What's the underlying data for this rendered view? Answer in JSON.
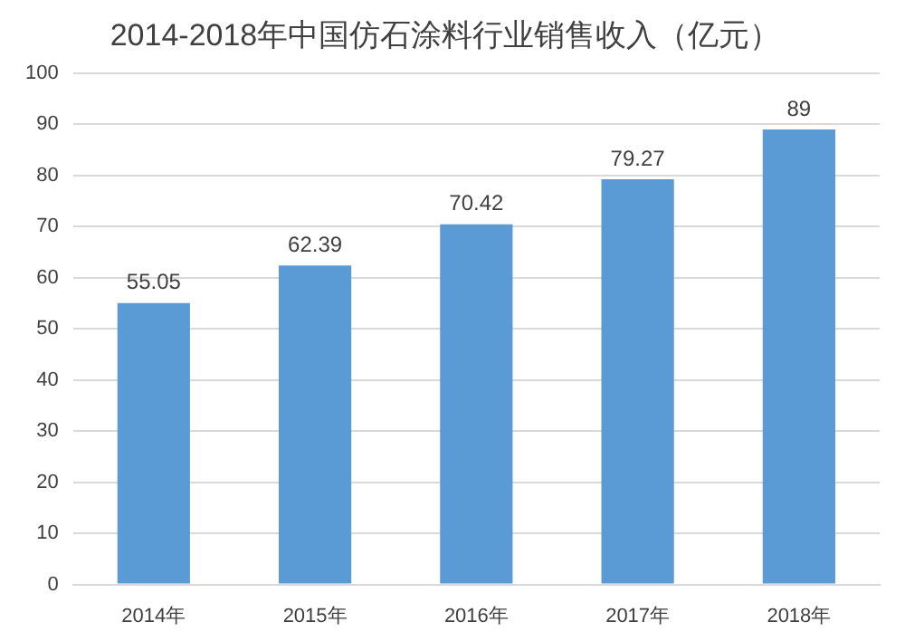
{
  "chart_data": {
    "type": "bar",
    "title": "2014-2018年中国仿石涂料行业销售收入（亿元）",
    "categories": [
      "2014年",
      "2015年",
      "2016年",
      "2017年",
      "2018年"
    ],
    "values": [
      55.05,
      62.39,
      70.42,
      79.27,
      89
    ],
    "color": "#5b9bd5",
    "ylim": [
      0,
      100
    ],
    "yticks": [
      0,
      10,
      20,
      30,
      40,
      50,
      60,
      70,
      80,
      90,
      100
    ],
    "grid": "y",
    "data_labels": true,
    "legend": false
  }
}
